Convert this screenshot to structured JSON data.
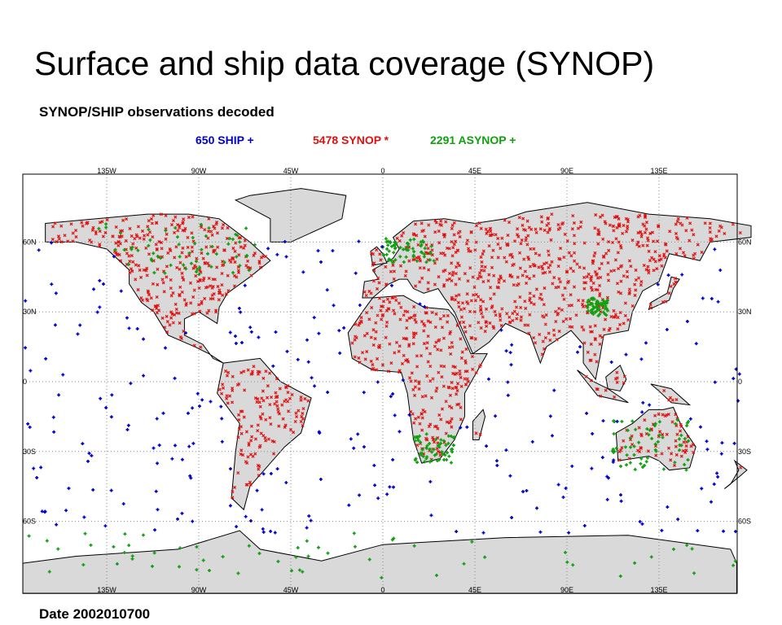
{
  "title": "Surface and ship data coverage (SYNOP)",
  "subtitle": "SYNOP/SHIP observations decoded",
  "legend": [
    "650 SHIP +",
    "5478 SYNOP *",
    "2291 ASYNOP +"
  ],
  "longitude_labels": [
    "135W",
    "90W",
    "45W",
    "0",
    "45E",
    "90E",
    "135E"
  ],
  "latitude_labels": [
    "60N",
    "30N",
    "0",
    "30S",
    "60S"
  ],
  "date": "Date 2002010700"
}
